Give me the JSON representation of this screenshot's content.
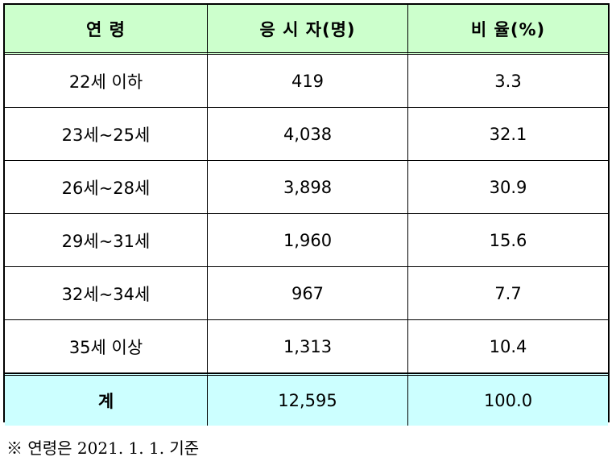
{
  "table": {
    "headers": [
      "연 령",
      "응 시 자(명)",
      "비 율(%)"
    ],
    "rows": [
      [
        "22세 이하",
        "419",
        "3.3"
      ],
      [
        "23세~25세",
        "4,038",
        "32.1"
      ],
      [
        "26세~28세",
        "3,898",
        "30.9"
      ],
      [
        "29세~31세",
        "1,960",
        "15.6"
      ],
      [
        "32세~34세",
        "967",
        "7.7"
      ],
      [
        "35세 이상",
        "1,313",
        "10.4"
      ]
    ],
    "total": [
      "계",
      "12,595",
      "100.0"
    ]
  },
  "footnote": "※ 연령은 2021. 1. 1. 기준",
  "colors": {
    "header_bg": "#ccffcc",
    "total_bg": "#ccffff"
  }
}
